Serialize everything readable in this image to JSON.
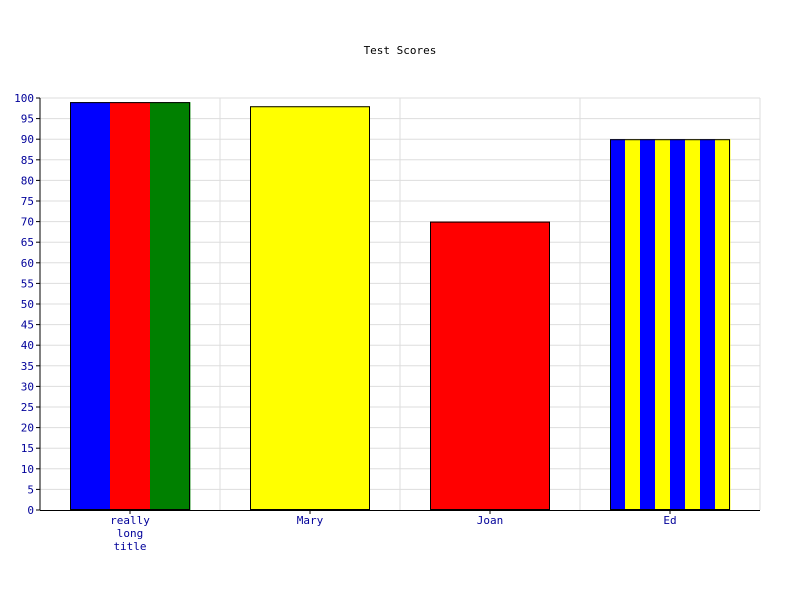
{
  "chart_data": {
    "type": "bar",
    "title": "Test Scores",
    "xlabel": "",
    "ylabel": "",
    "categories": [
      [
        "really",
        "long",
        "title"
      ],
      [
        "Mary"
      ],
      [
        "Joan"
      ],
      [
        "Ed"
      ]
    ],
    "values": [
      99,
      98,
      70,
      90
    ],
    "ylim": [
      0,
      100
    ],
    "ytick_step": 5,
    "grid": true,
    "bar_styles": [
      {
        "pattern": "stripes",
        "colors": [
          "#0000ff",
          "#ff0000",
          "#008000"
        ],
        "stripe_count": 3
      },
      {
        "pattern": "solid",
        "colors": [
          "#ffff00"
        ]
      },
      {
        "pattern": "solid",
        "colors": [
          "#ff0000"
        ]
      },
      {
        "pattern": "stripes",
        "colors": [
          "#0000ff",
          "#ffff00"
        ],
        "stripe_count": 8
      }
    ],
    "colors": {
      "tick_label": "#000099",
      "title": "#000000",
      "grid": "#dddddd",
      "axis": "#000000",
      "bar_outline": "#000000"
    }
  }
}
